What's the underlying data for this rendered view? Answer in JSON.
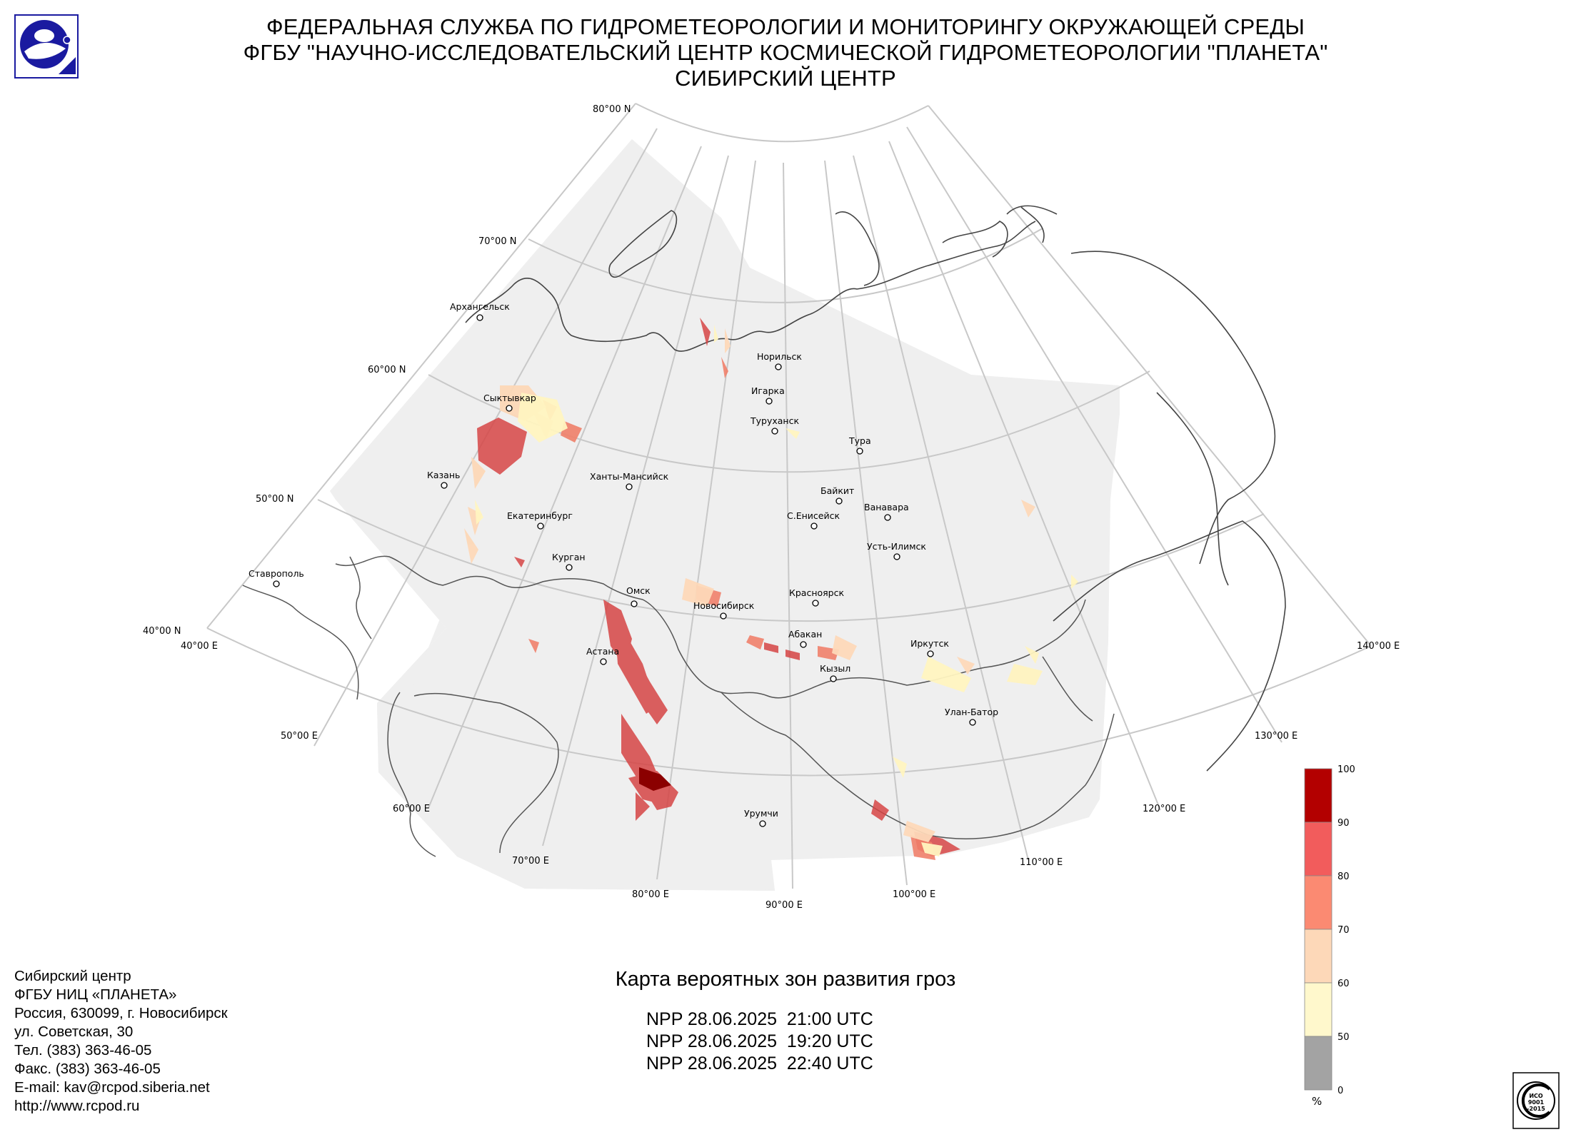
{
  "header": {
    "line1": "ФЕДЕРАЛЬНАЯ СЛУЖБА ПО ГИДРОМЕТЕОРОЛОГИИ И МОНИТОРИНГУ ОКРУЖАЮЩЕЙ СРЕДЫ",
    "line2": "ФГБУ \"НАУЧНО-ИССЛЕДОВАТЕЛЬСКИЙ ЦЕНТР КОСМИЧЕСКОЙ ГИДРОМЕТЕОРОЛОГИИ \"ПЛАНЕТА\"",
    "line3": "СИБИРСКИЙ ЦЕНТР"
  },
  "map": {
    "lat_labels": [
      "80°00 N",
      "70°00 N",
      "60°00 N",
      "50°00 N",
      "40°00 N"
    ],
    "lon_labels": [
      "40°00 E",
      "50°00 E",
      "60°00 E",
      "70°00 E",
      "80°00 E",
      "90°00 E",
      "100°00 E",
      "110°00 E",
      "120°00 E",
      "130°00 E",
      "140°00 E"
    ],
    "cities": [
      "Архангельск",
      "Сыктывкар",
      "Казань",
      "Екатеринбург",
      "Курган",
      "Ставрополь",
      "Ханты-Мансийск",
      "Омск",
      "Новосибирск",
      "Астана",
      "Норильск",
      "Игарка",
      "Туруханск",
      "Тура",
      "Байкит",
      "Ванавара",
      "С.Енисейск",
      "Усть-Илимск",
      "Красноярск",
      "Абакан",
      "Кызыл",
      "Иркутск",
      "Улан-Батор",
      "Урумчи"
    ]
  },
  "legend": {
    "ticks": [
      "100",
      "90",
      "80",
      "70",
      "60",
      "50",
      "0"
    ],
    "unit": "%",
    "colors": [
      "#b30000",
      "#f25c5c",
      "#fb8a72",
      "#fdd8b8",
      "#fff8cc",
      "#a3a3a3"
    ]
  },
  "footer": {
    "lines": [
      "Сибирский центр",
      "ФГБУ НИЦ «ПЛАНЕТА»",
      "Россия, 630099, г. Новосибирск",
      "ул. Советская, 30",
      "Тел. (383) 363-46-05",
      "Факс. (383) 363-46-05",
      "E-mail: kav@rcpod.siberia.net",
      "http://www.rcpod.ru"
    ]
  },
  "caption": "Карта вероятных зон развития гроз",
  "times": [
    "NPP 28.06.2025  21:00 UTC",
    "NPP 28.06.2025  19:20 UTC",
    "NPP 28.06.2025  22:40 UTC"
  ],
  "iso": {
    "text1": "ИСО",
    "text2": "9001",
    "text3": "-2015"
  }
}
